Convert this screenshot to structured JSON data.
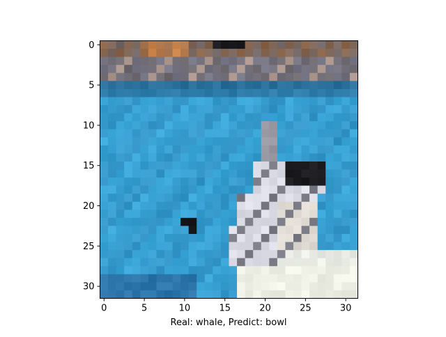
{
  "figure": {
    "xlabel": "Real: whale, Predict: bowl",
    "image_grid": 32,
    "x_ticks": [
      "0",
      "5",
      "10",
      "15",
      "20",
      "25",
      "30"
    ],
    "y_ticks": [
      "0",
      "5",
      "10",
      "15",
      "20",
      "25",
      "30"
    ]
  },
  "image": {
    "description_colors": {
      "water": "#3aa6d8",
      "water_dark": "#2e86b8",
      "water_top": "#2a6f99",
      "shore_brown": "#8a6448",
      "shore_orange": "#c8824a",
      "shore_gray": "#6e6a70",
      "whale_black": "#1a1a1e",
      "whale_white": "#dcdce6",
      "whale_gray": "#7a7a84",
      "foam": "#eef0e6"
    }
  }
}
